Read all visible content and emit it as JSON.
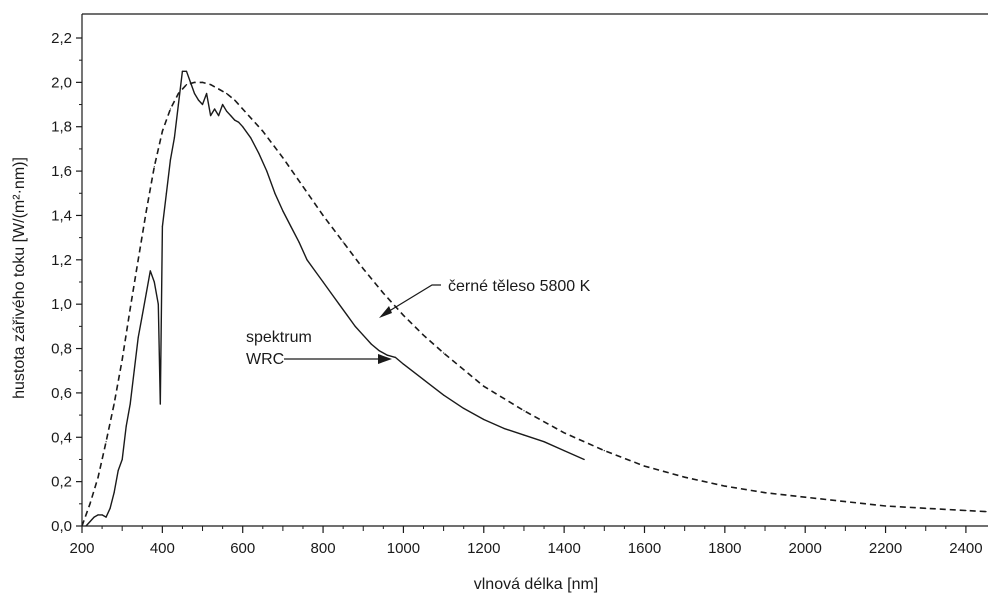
{
  "chart_data": {
    "type": "line",
    "xlabel": "vlnová délka [nm]",
    "ylabel": "hustota zářivého toku [W/(m²·nm)]",
    "xlim": [
      200,
      2450
    ],
    "ylim": [
      0,
      2.2
    ],
    "x_ticks": [
      200,
      400,
      600,
      800,
      1000,
      1200,
      1400,
      1600,
      1800,
      2000,
      2200,
      2400
    ],
    "x_tick_labels": [
      "200",
      "400",
      "600",
      "800",
      "1000",
      "1200",
      "1400",
      "1600",
      "1800",
      "2000",
      "2200",
      "2400"
    ],
    "y_ticks": [
      0,
      0.2,
      0.4,
      0.6,
      0.8,
      1.0,
      1.2,
      1.4,
      1.6,
      1.8,
      2.0,
      2.2
    ],
    "y_tick_labels": [
      "0,0",
      "0,2",
      "0,4",
      "0,6",
      "0,8",
      "1,0",
      "1,2",
      "1,4",
      "1,6",
      "1,8",
      "2,0",
      "2,2"
    ],
    "grid": false,
    "series": [
      {
        "name": "spektrum WRC",
        "style": "solid",
        "x": [
          210,
          220,
          230,
          240,
          250,
          260,
          270,
          280,
          290,
          300,
          310,
          320,
          330,
          340,
          350,
          360,
          370,
          380,
          390,
          395,
          400,
          410,
          420,
          430,
          440,
          450,
          460,
          470,
          480,
          490,
          500,
          510,
          520,
          530,
          540,
          550,
          560,
          570,
          580,
          590,
          600,
          620,
          640,
          660,
          680,
          700,
          720,
          740,
          760,
          780,
          800,
          820,
          840,
          860,
          880,
          900,
          920,
          940,
          960,
          980,
          1000,
          1050,
          1100,
          1150,
          1200,
          1250,
          1300,
          1350,
          1400,
          1450
        ],
        "values": [
          0.0,
          0.02,
          0.04,
          0.05,
          0.05,
          0.04,
          0.08,
          0.15,
          0.25,
          0.3,
          0.45,
          0.55,
          0.7,
          0.85,
          0.95,
          1.05,
          1.15,
          1.1,
          1.0,
          0.55,
          1.35,
          1.5,
          1.65,
          1.75,
          1.9,
          2.05,
          2.05,
          2.0,
          1.95,
          1.92,
          1.9,
          1.95,
          1.85,
          1.88,
          1.85,
          1.9,
          1.87,
          1.85,
          1.83,
          1.82,
          1.8,
          1.75,
          1.68,
          1.6,
          1.5,
          1.42,
          1.35,
          1.28,
          1.2,
          1.15,
          1.1,
          1.05,
          1.0,
          0.95,
          0.9,
          0.86,
          0.82,
          0.79,
          0.77,
          0.76,
          0.73,
          0.66,
          0.59,
          0.53,
          0.48,
          0.44,
          0.41,
          0.38,
          0.34,
          0.3
        ]
      },
      {
        "name": "černé těleso 5800 K",
        "style": "dashed",
        "x": [
          200,
          220,
          240,
          260,
          280,
          300,
          320,
          340,
          360,
          380,
          400,
          420,
          440,
          460,
          480,
          500,
          520,
          540,
          560,
          580,
          600,
          650,
          700,
          750,
          800,
          850,
          900,
          950,
          1000,
          1050,
          1100,
          1200,
          1300,
          1400,
          1500,
          1600,
          1700,
          1800,
          1900,
          2000,
          2100,
          2200,
          2300,
          2400,
          2450
        ],
        "values": [
          0.0,
          0.1,
          0.22,
          0.38,
          0.55,
          0.75,
          0.98,
          1.2,
          1.42,
          1.62,
          1.78,
          1.88,
          1.95,
          1.99,
          2.0,
          2.0,
          1.99,
          1.97,
          1.95,
          1.92,
          1.88,
          1.78,
          1.66,
          1.53,
          1.4,
          1.28,
          1.16,
          1.05,
          0.95,
          0.86,
          0.78,
          0.63,
          0.52,
          0.42,
          0.34,
          0.27,
          0.22,
          0.18,
          0.15,
          0.13,
          0.11,
          0.09,
          0.08,
          0.07,
          0.065
        ]
      }
    ],
    "annotations": [
      {
        "text": "černé těleso 5800 K",
        "points_to_series": "černé těleso 5800 K"
      },
      {
        "text": "spektrum\nWRC",
        "points_to_series": "spektrum WRC"
      }
    ]
  }
}
